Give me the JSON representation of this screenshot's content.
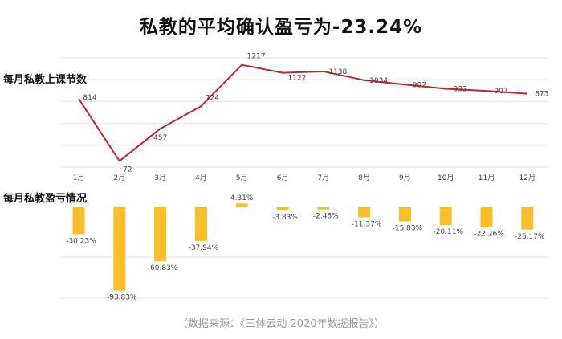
{
  "title": "私教的平均确认盈亏为-23.24%",
  "line_section_label": "每月私教上课节数",
  "bar_section_label": "每月私教盈亏情况",
  "source": "（数据来源：《三体云动 2020年数据报告》）",
  "colors": {
    "line": "#c8232c",
    "bar": "#f9bf2a",
    "grid": "#e6e6e6"
  },
  "chart_data": [
    {
      "type": "line",
      "title": "每月私教上课节数",
      "categories": [
        "1月",
        "2月",
        "3月",
        "4月",
        "5月",
        "6月",
        "7月",
        "8月",
        "9月",
        "10月",
        "11月",
        "12月"
      ],
      "values": [
        814,
        72,
        457,
        724,
        1217,
        1122,
        1138,
        1034,
        982,
        932,
        907,
        873
      ],
      "ylim": [
        0,
        1300
      ]
    },
    {
      "type": "bar",
      "title": "每月私教盈亏情况",
      "categories": [
        "1月",
        "2月",
        "3月",
        "4月",
        "5月",
        "6月",
        "7月",
        "8月",
        "9月",
        "10月",
        "11月",
        "12月"
      ],
      "values": [
        -30.23,
        -93.83,
        -60.83,
        -37.94,
        4.31,
        -3.83,
        -2.46,
        -11.37,
        -15.83,
        -20.11,
        -22.26,
        -25.17
      ],
      "labels": [
        "-30.23%",
        "-93.83%",
        "-60.83%",
        "-37.94%",
        "4.31%",
        "-3.83%",
        "-2.46%",
        "-11.37%",
        "-15.83%",
        "-20.11%",
        "-22.26%",
        "-25.17%"
      ]
    }
  ]
}
